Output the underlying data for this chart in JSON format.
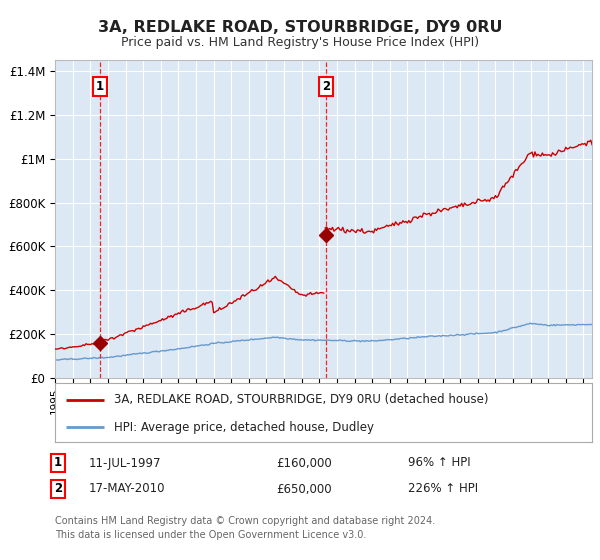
{
  "title": "3A, REDLAKE ROAD, STOURBRIDGE, DY9 0RU",
  "subtitle": "Price paid vs. HM Land Registry's House Price Index (HPI)",
  "ylim": [
    0,
    1450000
  ],
  "xlim_start": 1995.0,
  "xlim_end": 2025.5,
  "background_color": "#dce9f5",
  "fig_bg_color": "#ffffff",
  "grid_color": "#ffffff",
  "red_line_color": "#cc0000",
  "blue_line_color": "#6699cc",
  "sale1_x": 1997.53,
  "sale1_y": 160000,
  "sale1_label": "1",
  "sale1_date": "11-JUL-1997",
  "sale1_price": "£160,000",
  "sale1_hpi": "96% ↑ HPI",
  "sale2_x": 2010.37,
  "sale2_y": 650000,
  "sale2_label": "2",
  "sale2_date": "17-MAY-2010",
  "sale2_price": "£650,000",
  "sale2_hpi": "226% ↑ HPI",
  "legend_line1": "3A, REDLAKE ROAD, STOURBRIDGE, DY9 0RU (detached house)",
  "legend_line2": "HPI: Average price, detached house, Dudley",
  "footer1": "Contains HM Land Registry data © Crown copyright and database right 2024.",
  "footer2": "This data is licensed under the Open Government Licence v3.0.",
  "ytick_labels": [
    "£0",
    "£200K",
    "£400K",
    "£600K",
    "£800K",
    "£1M",
    "£1.2M",
    "£1.4M"
  ],
  "ytick_values": [
    0,
    200000,
    400000,
    600000,
    800000,
    1000000,
    1200000,
    1400000
  ]
}
